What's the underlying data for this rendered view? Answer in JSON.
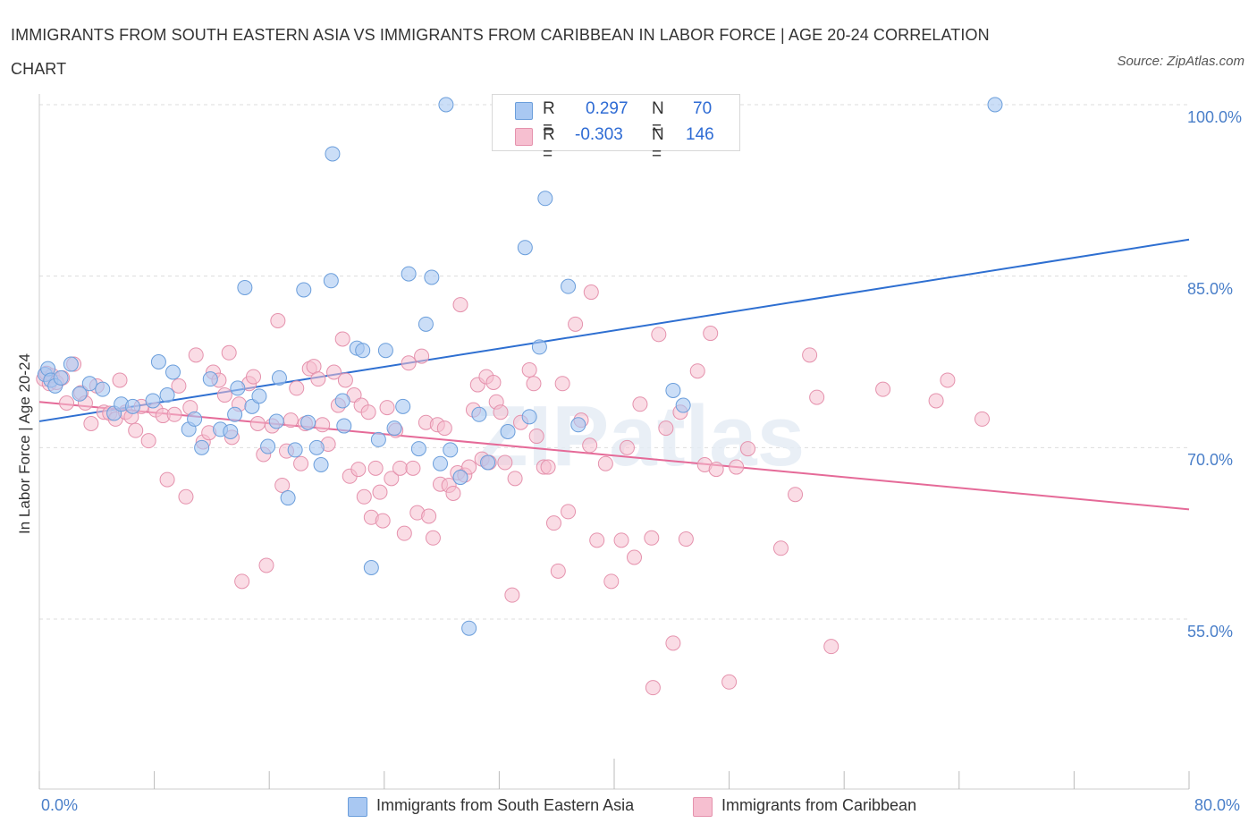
{
  "title": "IMMIGRANTS FROM SOUTH EASTERN ASIA VS IMMIGRANTS FROM CARIBBEAN IN LABOR FORCE | AGE 20-24 CORRELATION CHART",
  "source": "Source: ZipAtlas.com",
  "watermark": "ZIPatlas",
  "colors": {
    "blue_fill": "#a9c8f2",
    "blue_stroke": "#6b9edb",
    "blue_line": "#2e6fd1",
    "pink_fill": "#f6bfd0",
    "pink_stroke": "#e592ad",
    "pink_line": "#e56a98",
    "tick_text": "#4a7fc9",
    "grid": "#dddddd"
  },
  "legend_top": {
    "rows": [
      {
        "r_label": "R =",
        "r_value": "0.297",
        "n_label": "N =",
        "n_value": "70"
      },
      {
        "r_label": "R =",
        "r_value": "-0.303",
        "n_label": "N =",
        "n_value": "146"
      }
    ]
  },
  "legend_bottom": {
    "items": [
      "Immigrants from South Eastern Asia",
      "Immigrants from Caribbean"
    ]
  },
  "chart_data": {
    "type": "scatter",
    "title": "IMMIGRANTS FROM SOUTH EASTERN ASIA VS IMMIGRANTS FROM CARIBBEAN IN LABOR FORCE | AGE 20-24 CORRELATION CHART",
    "xlabel": "",
    "ylabel": "In Labor Force | Age 20-24",
    "xlim": [
      0,
      80
    ],
    "ylim": [
      40,
      100
    ],
    "x_tick_labels": [
      "0.0%",
      "80.0%"
    ],
    "y_ticks": [
      55,
      70,
      85,
      100
    ],
    "y_tick_labels": [
      "55.0%",
      "70.0%",
      "85.0%",
      "100.0%"
    ],
    "grid": true,
    "legend_position": "top-center",
    "series": [
      {
        "name": "Immigrants from South Eastern Asia",
        "R": 0.297,
        "N": 70,
        "trend": {
          "x": [
            0,
            80
          ],
          "y": [
            72.3,
            88.2
          ]
        },
        "points": [
          [
            0.4,
            76.4
          ],
          [
            0.6,
            76.9
          ],
          [
            0.8,
            75.9
          ],
          [
            1.1,
            75.4
          ],
          [
            1.5,
            76.1
          ],
          [
            2.2,
            77.3
          ],
          [
            2.8,
            74.7
          ],
          [
            3.5,
            75.6
          ],
          [
            4.4,
            75.1
          ],
          [
            5.2,
            73.0
          ],
          [
            5.7,
            73.8
          ],
          [
            6.5,
            73.6
          ],
          [
            7.9,
            74.1
          ],
          [
            8.3,
            77.5
          ],
          [
            8.9,
            74.6
          ],
          [
            9.3,
            76.6
          ],
          [
            10.4,
            71.6
          ],
          [
            10.8,
            72.5
          ],
          [
            11.3,
            70.0
          ],
          [
            11.9,
            76.0
          ],
          [
            12.6,
            71.6
          ],
          [
            13.3,
            71.4
          ],
          [
            13.6,
            72.9
          ],
          [
            13.8,
            75.2
          ],
          [
            14.3,
            84.0
          ],
          [
            14.8,
            73.6
          ],
          [
            15.3,
            74.5
          ],
          [
            15.9,
            70.1
          ],
          [
            16.5,
            72.3
          ],
          [
            16.7,
            76.1
          ],
          [
            17.3,
            65.6
          ],
          [
            17.8,
            69.8
          ],
          [
            18.4,
            83.8
          ],
          [
            18.7,
            72.2
          ],
          [
            19.3,
            70.0
          ],
          [
            19.6,
            68.5
          ],
          [
            20.3,
            84.6
          ],
          [
            20.4,
            95.7
          ],
          [
            21.1,
            74.1
          ],
          [
            21.2,
            71.9
          ],
          [
            22.1,
            78.7
          ],
          [
            22.5,
            78.5
          ],
          [
            23.1,
            59.5
          ],
          [
            23.6,
            70.7
          ],
          [
            24.1,
            78.5
          ],
          [
            24.7,
            71.7
          ],
          [
            25.3,
            73.6
          ],
          [
            25.7,
            85.2
          ],
          [
            26.4,
            69.9
          ],
          [
            26.9,
            80.8
          ],
          [
            27.3,
            84.9
          ],
          [
            27.9,
            68.6
          ],
          [
            28.3,
            100.0
          ],
          [
            28.6,
            69.8
          ],
          [
            29.3,
            67.4
          ],
          [
            29.9,
            54.2
          ],
          [
            30.6,
            72.9
          ],
          [
            31.2,
            68.7
          ],
          [
            32.1,
            100.0
          ],
          [
            32.6,
            71.4
          ],
          [
            33.6,
            100.0
          ],
          [
            34.1,
            72.7
          ],
          [
            33.8,
            87.5
          ],
          [
            34.8,
            78.8
          ],
          [
            36.8,
            84.1
          ],
          [
            35.2,
            91.8
          ],
          [
            37.5,
            72.0
          ],
          [
            44.1,
            75.0
          ],
          [
            44.8,
            73.7
          ],
          [
            66.5,
            100.0
          ]
        ]
      },
      {
        "name": "Immigrants from Caribbean",
        "R": -0.303,
        "N": 146,
        "trend": {
          "x": [
            0,
            80
          ],
          "y": [
            74.0,
            64.6
          ]
        },
        "points": [
          [
            0.3,
            76.0
          ],
          [
            0.5,
            76.5
          ],
          [
            0.7,
            75.6
          ],
          [
            0.9,
            76.3
          ],
          [
            1.2,
            75.7
          ],
          [
            1.6,
            76.1
          ],
          [
            1.9,
            73.9
          ],
          [
            2.4,
            77.3
          ],
          [
            2.9,
            74.8
          ],
          [
            3.2,
            73.9
          ],
          [
            3.6,
            72.1
          ],
          [
            4.0,
            75.4
          ],
          [
            4.5,
            73.1
          ],
          [
            4.9,
            73.0
          ],
          [
            5.3,
            72.5
          ],
          [
            5.6,
            75.9
          ],
          [
            6.0,
            73.1
          ],
          [
            6.4,
            72.7
          ],
          [
            6.7,
            71.5
          ],
          [
            7.1,
            73.6
          ],
          [
            7.6,
            70.6
          ],
          [
            8.1,
            73.3
          ],
          [
            8.6,
            72.8
          ],
          [
            8.9,
            67.2
          ],
          [
            9.4,
            72.9
          ],
          [
            9.7,
            75.4
          ],
          [
            10.2,
            65.7
          ],
          [
            10.5,
            73.5
          ],
          [
            10.9,
            78.1
          ],
          [
            11.4,
            70.5
          ],
          [
            11.8,
            71.3
          ],
          [
            12.1,
            76.6
          ],
          [
            12.5,
            75.9
          ],
          [
            12.9,
            74.6
          ],
          [
            13.2,
            78.3
          ],
          [
            13.4,
            70.9
          ],
          [
            13.9,
            73.8
          ],
          [
            14.1,
            58.3
          ],
          [
            14.6,
            75.6
          ],
          [
            14.9,
            76.2
          ],
          [
            15.2,
            72.1
          ],
          [
            15.6,
            69.4
          ],
          [
            15.8,
            59.7
          ],
          [
            16.2,
            71.9
          ],
          [
            16.6,
            81.1
          ],
          [
            16.9,
            66.7
          ],
          [
            17.2,
            69.7
          ],
          [
            17.5,
            72.4
          ],
          [
            17.9,
            75.2
          ],
          [
            18.2,
            68.6
          ],
          [
            18.5,
            72.1
          ],
          [
            18.8,
            76.9
          ],
          [
            19.1,
            77.1
          ],
          [
            19.4,
            76.0
          ],
          [
            19.7,
            72.0
          ],
          [
            20.1,
            70.3
          ],
          [
            20.5,
            76.6
          ],
          [
            20.8,
            73.7
          ],
          [
            21.1,
            79.5
          ],
          [
            21.3,
            75.9
          ],
          [
            21.6,
            67.5
          ],
          [
            21.9,
            74.6
          ],
          [
            22.2,
            68.1
          ],
          [
            22.4,
            73.7
          ],
          [
            22.6,
            65.7
          ],
          [
            22.9,
            73.1
          ],
          [
            23.1,
            63.9
          ],
          [
            23.4,
            68.2
          ],
          [
            23.7,
            66.1
          ],
          [
            23.9,
            63.6
          ],
          [
            24.2,
            73.5
          ],
          [
            24.5,
            67.3
          ],
          [
            24.8,
            71.5
          ],
          [
            25.1,
            68.2
          ],
          [
            25.4,
            62.5
          ],
          [
            25.7,
            77.4
          ],
          [
            26.0,
            68.2
          ],
          [
            26.3,
            64.3
          ],
          [
            26.6,
            78.0
          ],
          [
            26.9,
            72.2
          ],
          [
            27.1,
            64.0
          ],
          [
            27.4,
            62.1
          ],
          [
            27.7,
            72.0
          ],
          [
            27.9,
            66.8
          ],
          [
            28.2,
            71.7
          ],
          [
            28.5,
            66.7
          ],
          [
            28.8,
            66.0
          ],
          [
            29.1,
            67.8
          ],
          [
            29.3,
            82.5
          ],
          [
            29.6,
            67.6
          ],
          [
            29.9,
            68.3
          ],
          [
            30.2,
            73.3
          ],
          [
            30.5,
            75.5
          ],
          [
            30.8,
            69.0
          ],
          [
            31.1,
            76.2
          ],
          [
            31.3,
            68.7
          ],
          [
            31.6,
            75.7
          ],
          [
            31.8,
            74.0
          ],
          [
            32.1,
            73.1
          ],
          [
            32.4,
            68.7
          ],
          [
            32.9,
            57.1
          ],
          [
            33.1,
            67.3
          ],
          [
            33.5,
            72.2
          ],
          [
            34.1,
            76.8
          ],
          [
            34.4,
            75.6
          ],
          [
            34.6,
            71.0
          ],
          [
            35.1,
            68.3
          ],
          [
            35.4,
            68.3
          ],
          [
            35.8,
            63.4
          ],
          [
            36.1,
            59.2
          ],
          [
            36.4,
            75.6
          ],
          [
            36.8,
            64.4
          ],
          [
            37.3,
            80.8
          ],
          [
            37.7,
            72.4
          ],
          [
            38.3,
            70.2
          ],
          [
            38.8,
            61.9
          ],
          [
            39.4,
            68.6
          ],
          [
            39.8,
            58.3
          ],
          [
            40.5,
            61.9
          ],
          [
            40.9,
            70.0
          ],
          [
            41.4,
            60.4
          ],
          [
            41.8,
            73.8
          ],
          [
            42.6,
            62.1
          ],
          [
            43.1,
            79.9
          ],
          [
            43.6,
            71.7
          ],
          [
            44.1,
            52.9
          ],
          [
            44.6,
            73.1
          ],
          [
            45.0,
            62.0
          ],
          [
            45.8,
            76.7
          ],
          [
            46.3,
            68.5
          ],
          [
            46.7,
            80.0
          ],
          [
            47.1,
            68.1
          ],
          [
            48.0,
            49.5
          ],
          [
            48.5,
            68.3
          ],
          [
            49.3,
            69.9
          ],
          [
            51.6,
            61.2
          ],
          [
            52.6,
            65.9
          ],
          [
            53.6,
            78.1
          ],
          [
            54.1,
            74.4
          ],
          [
            55.1,
            52.6
          ],
          [
            58.7,
            75.1
          ],
          [
            62.4,
            74.1
          ],
          [
            63.2,
            75.9
          ],
          [
            65.6,
            72.5
          ],
          [
            38.4,
            83.6
          ],
          [
            42.7,
            49.0
          ]
        ]
      }
    ]
  }
}
